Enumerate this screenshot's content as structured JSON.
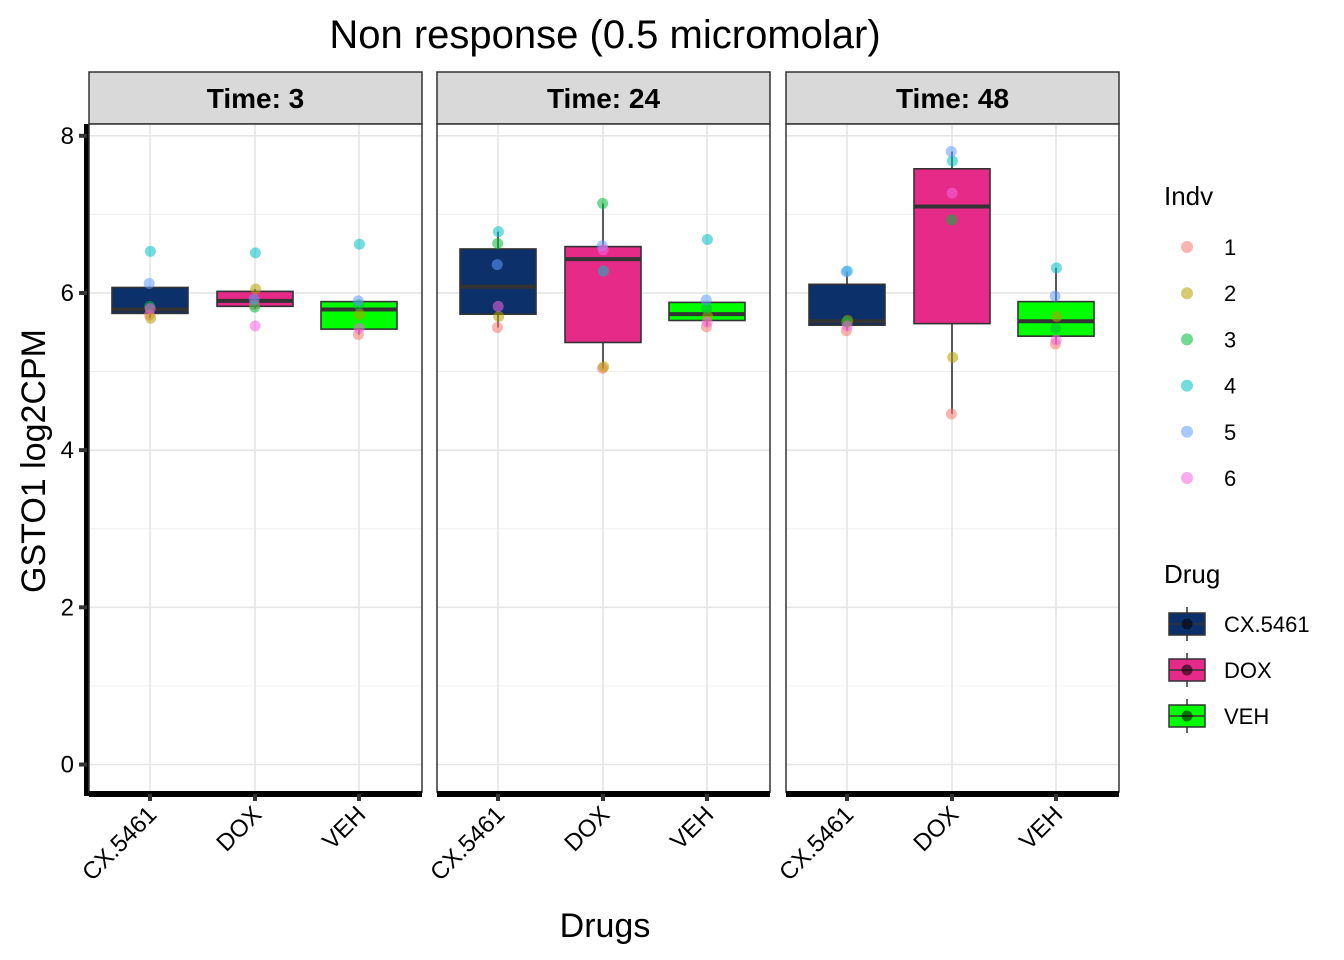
{
  "chart_data": {
    "type": "box",
    "title": "Non response (0.5 micromolar)",
    "xlabel": "Drugs",
    "ylabel": "GSTO1  log2CPM",
    "ylim": [
      -0.35,
      8.15
    ],
    "yticks": [
      0,
      2,
      4,
      6,
      8
    ],
    "categories": [
      "CX.5461",
      "DOX",
      "VEH"
    ],
    "grid": true,
    "panels": [
      {
        "label": "Time: 3",
        "boxes": [
          {
            "drug": "CX.5461",
            "q1": 5.74,
            "median": 5.79,
            "q3": 6.07,
            "whisker_low": 5.68,
            "whisker_high": 6.07,
            "points": [
              {
                "indv": "1",
                "y": 5.72
              },
              {
                "indv": "2",
                "y": 5.68
              },
              {
                "indv": "3",
                "y": 5.83
              },
              {
                "indv": "4",
                "y": 6.53
              },
              {
                "indv": "5",
                "y": 6.12
              },
              {
                "indv": "6",
                "y": 5.8
              }
            ]
          },
          {
            "drug": "DOX",
            "q1": 5.83,
            "median": 5.9,
            "q3": 6.02,
            "whisker_low": 5.8,
            "whisker_high": 6.05,
            "points": [
              {
                "indv": "1",
                "y": 5.85
              },
              {
                "indv": "2",
                "y": 6.05
              },
              {
                "indv": "3",
                "y": 5.82
              },
              {
                "indv": "4",
                "y": 6.51
              },
              {
                "indv": "5",
                "y": 5.92
              },
              {
                "indv": "6",
                "y": 5.58
              }
            ]
          },
          {
            "drug": "VEH",
            "q1": 5.54,
            "median": 5.79,
            "q3": 5.89,
            "whisker_low": 5.47,
            "whisker_high": 5.89,
            "points": [
              {
                "indv": "1",
                "y": 5.47
              },
              {
                "indv": "2",
                "y": 5.73
              },
              {
                "indv": "3",
                "y": 5.85
              },
              {
                "indv": "4",
                "y": 6.62
              },
              {
                "indv": "5",
                "y": 5.9
              },
              {
                "indv": "6",
                "y": 5.55
              }
            ]
          }
        ]
      },
      {
        "label": "Time: 24",
        "boxes": [
          {
            "drug": "CX.5461",
            "q1": 5.73,
            "median": 6.08,
            "q3": 6.56,
            "whisker_low": 5.56,
            "whisker_high": 6.78,
            "points": [
              {
                "indv": "1",
                "y": 5.56
              },
              {
                "indv": "2",
                "y": 5.7
              },
              {
                "indv": "3",
                "y": 6.63
              },
              {
                "indv": "4",
                "y": 6.78
              },
              {
                "indv": "5",
                "y": 6.36
              },
              {
                "indv": "6",
                "y": 5.83
              }
            ]
          },
          {
            "drug": "DOX",
            "q1": 5.37,
            "median": 6.43,
            "q3": 6.59,
            "whisker_low": 5.04,
            "whisker_high": 7.14,
            "points": [
              {
                "indv": "1",
                "y": 5.04
              },
              {
                "indv": "2",
                "y": 5.06
              },
              {
                "indv": "3",
                "y": 7.14
              },
              {
                "indv": "4",
                "y": 6.28
              },
              {
                "indv": "5",
                "y": 6.6
              },
              {
                "indv": "6",
                "y": 6.55
              }
            ]
          },
          {
            "drug": "VEH",
            "q1": 5.65,
            "median": 5.73,
            "q3": 5.88,
            "whisker_low": 5.57,
            "whisker_high": 5.88,
            "points": [
              {
                "indv": "1",
                "y": 5.57
              },
              {
                "indv": "2",
                "y": 5.7
              },
              {
                "indv": "3",
                "y": 5.8
              },
              {
                "indv": "4",
                "y": 6.68
              },
              {
                "indv": "5",
                "y": 5.91
              },
              {
                "indv": "6",
                "y": 5.63
              }
            ]
          }
        ]
      },
      {
        "label": "Time: 48",
        "boxes": [
          {
            "drug": "CX.5461",
            "q1": 5.59,
            "median": 5.64,
            "q3": 6.11,
            "whisker_low": 5.52,
            "whisker_high": 6.27,
            "points": [
              {
                "indv": "1",
                "y": 5.52
              },
              {
                "indv": "2",
                "y": 5.65
              },
              {
                "indv": "3",
                "y": 5.63
              },
              {
                "indv": "4",
                "y": 6.28
              },
              {
                "indv": "5",
                "y": 6.27
              },
              {
                "indv": "6",
                "y": 5.58
              }
            ]
          },
          {
            "drug": "DOX",
            "q1": 5.61,
            "median": 7.1,
            "q3": 7.58,
            "whisker_low": 4.46,
            "whisker_high": 7.8,
            "points": [
              {
                "indv": "1",
                "y": 4.46
              },
              {
                "indv": "2",
                "y": 5.18
              },
              {
                "indv": "3",
                "y": 6.93
              },
              {
                "indv": "4",
                "y": 7.68
              },
              {
                "indv": "5",
                "y": 7.8
              },
              {
                "indv": "6",
                "y": 7.27
              }
            ]
          },
          {
            "drug": "VEH",
            "q1": 5.45,
            "median": 5.64,
            "q3": 5.89,
            "whisker_low": 5.35,
            "whisker_high": 6.32,
            "points": [
              {
                "indv": "1",
                "y": 5.35
              },
              {
                "indv": "2",
                "y": 5.7
              },
              {
                "indv": "3",
                "y": 5.55
              },
              {
                "indv": "4",
                "y": 6.32
              },
              {
                "indv": "5",
                "y": 5.96
              },
              {
                "indv": "6",
                "y": 5.4
              }
            ]
          }
        ]
      }
    ],
    "legend_indv": {
      "title": "Indv",
      "items": [
        {
          "label": "1",
          "color": "#F8766D"
        },
        {
          "label": "2",
          "color": "#B79F00"
        },
        {
          "label": "3",
          "color": "#00BA38"
        },
        {
          "label": "4",
          "color": "#00BFC4"
        },
        {
          "label": "5",
          "color": "#619CFF"
        },
        {
          "label": "6",
          "color": "#F564E3"
        }
      ]
    },
    "legend_drug": {
      "title": "Drug",
      "items": [
        {
          "label": "CX.5461",
          "color": "#0C3069"
        },
        {
          "label": "DOX",
          "color": "#E52A88"
        },
        {
          "label": "VEH",
          "color": "#00FF00"
        }
      ]
    },
    "legend_placement": "right"
  }
}
